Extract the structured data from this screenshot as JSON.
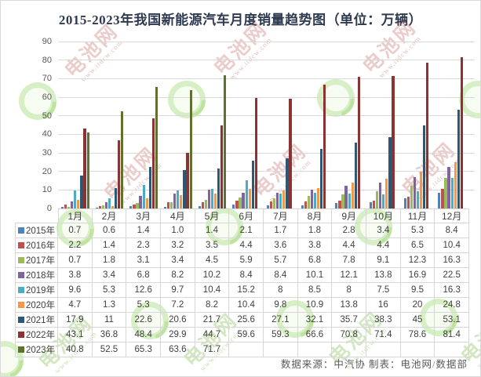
{
  "title": "2015-2023年我国新能源汽车月度销量趋势图（单位：万辆）",
  "footer": {
    "left": "数据来源：中汽协  制表：电池网",
    "slash": "/",
    "right": "数据部"
  },
  "watermark": {
    "logo_text": "电池网",
    "url_text": "www.itdcw.com"
  },
  "chart_data": {
    "type": "bar",
    "title": "2015-2023年我国新能源汽车月度销量趋势图（单位：万辆）",
    "xlabel": "",
    "ylabel": "",
    "unit": "万辆",
    "ylim": [
      0,
      90
    ],
    "yaxis": {
      "min": 0,
      "max": 90,
      "step": 10
    },
    "grid": true,
    "legend_position": "table-left",
    "categories": [
      "1月",
      "2月",
      "3月",
      "4月",
      "5月",
      "6月",
      "7月",
      "8月",
      "9月",
      "10月",
      "11月",
      "12月"
    ],
    "series": [
      {
        "name": "2015年",
        "color": "#4F81BD",
        "values": [
          "0.7",
          "0.6",
          "1.4",
          "1.0",
          "1.4",
          "2.1",
          "1.7",
          "1.8",
          "2.8",
          "3.4",
          "5.3",
          "8.4"
        ]
      },
      {
        "name": "2016年",
        "color": "#C0504D",
        "values": [
          "2.2",
          "1.4",
          "2.3",
          "3.2",
          "3.5",
          "4.4",
          "3.6",
          "3.8",
          "4.4",
          "4.4",
          "6.5",
          "10.4"
        ]
      },
      {
        "name": "2017年",
        "color": "#9BBB59",
        "values": [
          "0.7",
          "1.8",
          "3.1",
          "3.4",
          "4.5",
          "5.9",
          "5.7",
          "6.8",
          "7.8",
          "9.1",
          "12.3",
          "16.3"
        ]
      },
      {
        "name": "2018年",
        "color": "#8064A2",
        "values": [
          "3.8",
          "3.4",
          "6.8",
          "8.2",
          "10.2",
          "8.4",
          "8.4",
          "10.1",
          "12.1",
          "13.8",
          "16.9",
          "22.5"
        ]
      },
      {
        "name": "2019年",
        "color": "#4BACC6",
        "values": [
          "9.6",
          "5.3",
          "12.6",
          "9.7",
          "10.4",
          "15.2",
          "8",
          "8.5",
          "8",
          "7.5",
          "9.5",
          "16.3"
        ]
      },
      {
        "name": "2020年",
        "color": "#F79646",
        "values": [
          "4.7",
          "1.3",
          "5.3",
          "7.2",
          "8.2",
          "10.4",
          "9.8",
          "10.9",
          "13.8",
          "16",
          "20",
          "24.8"
        ]
      },
      {
        "name": "2021年",
        "color": "#2C5877",
        "values": [
          "17.9",
          "11",
          "22.6",
          "20.6",
          "21.7",
          "25.6",
          "27.1",
          "32.1",
          "35.7",
          "38.3",
          "45",
          "53.1"
        ]
      },
      {
        "name": "2022年",
        "color": "#8C3331",
        "values": [
          "43.1",
          "36.8",
          "48.4",
          "29.9",
          "44.7",
          "59.6",
          "59.3",
          "66.6",
          "70.8",
          "71.4",
          "78.6",
          "81.4"
        ]
      },
      {
        "name": "2023年",
        "color": "#5F7030",
        "values": [
          "40.8",
          "52.5",
          "65.3",
          "63.6",
          "71.7",
          "",
          "",
          "",
          "",
          "",
          "",
          ""
        ]
      }
    ]
  }
}
